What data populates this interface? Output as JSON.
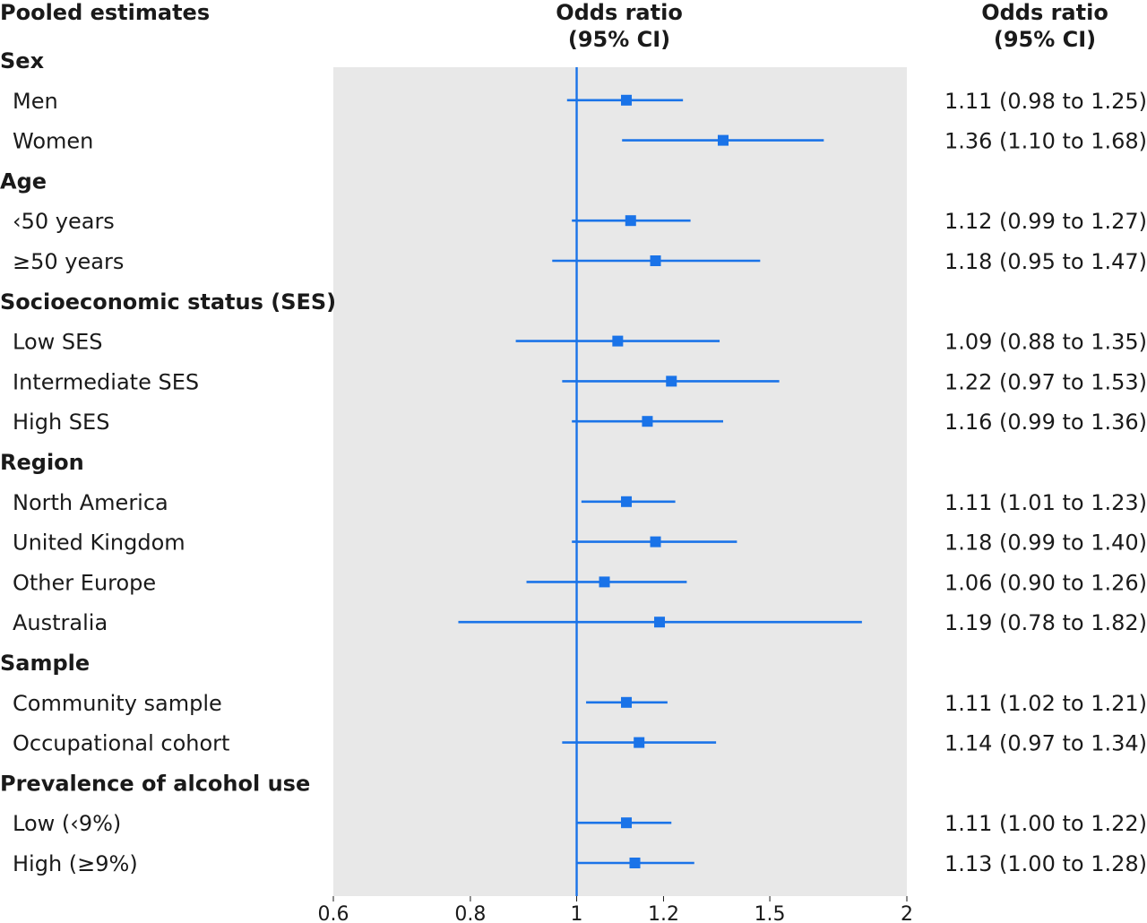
{
  "header": {
    "left": "Pooled estimates",
    "middle_line1": "Odds ratio",
    "middle_line2": "(95% CI)",
    "right_line1": "Odds ratio",
    "right_line2": "(95% CI)"
  },
  "colors": {
    "marker": "#1a73e8",
    "panel": "#e8e8e8",
    "text": "#1a1a1a"
  },
  "chart_data": {
    "type": "forest",
    "scale": "log",
    "reference_line": 1,
    "xlim": [
      0.6,
      2
    ],
    "x_ticks": [
      "0.6",
      "0.8",
      "1",
      "1.2",
      "1.5",
      "2"
    ],
    "x_tick_values": [
      0.6,
      0.8,
      1,
      1.2,
      1.5,
      2
    ],
    "rows": [
      {
        "kind": "group",
        "label": "Sex"
      },
      {
        "kind": "item",
        "label": "Men",
        "or": 1.11,
        "lo": 0.98,
        "hi": 1.25,
        "text": "1.11 (0.98 to 1.25)"
      },
      {
        "kind": "item",
        "label": "Women",
        "or": 1.36,
        "lo": 1.1,
        "hi": 1.68,
        "text": "1.36 (1.10 to 1.68)"
      },
      {
        "kind": "group",
        "label": "Age"
      },
      {
        "kind": "item",
        "label": "‹50 years",
        "or": 1.12,
        "lo": 0.99,
        "hi": 1.27,
        "text": "1.12 (0.99 to 1.27)"
      },
      {
        "kind": "item",
        "label": "≥50 years",
        "or": 1.18,
        "lo": 0.95,
        "hi": 1.47,
        "text": "1.18 (0.95 to 1.47)"
      },
      {
        "kind": "group",
        "label": "Socioeconomic status (SES)"
      },
      {
        "kind": "item",
        "label": "Low SES",
        "or": 1.09,
        "lo": 0.88,
        "hi": 1.35,
        "text": "1.09 (0.88 to 1.35)"
      },
      {
        "kind": "item",
        "label": "Intermediate SES",
        "or": 1.22,
        "lo": 0.97,
        "hi": 1.53,
        "text": "1.22 (0.97 to 1.53)"
      },
      {
        "kind": "item",
        "label": "High SES",
        "or": 1.16,
        "lo": 0.99,
        "hi": 1.36,
        "text": "1.16 (0.99 to 1.36)"
      },
      {
        "kind": "group",
        "label": "Region"
      },
      {
        "kind": "item",
        "label": "North America",
        "or": 1.11,
        "lo": 1.01,
        "hi": 1.23,
        "text": "1.11 (1.01 to 1.23)"
      },
      {
        "kind": "item",
        "label": "United Kingdom",
        "or": 1.18,
        "lo": 0.99,
        "hi": 1.4,
        "text": "1.18 (0.99 to 1.40)"
      },
      {
        "kind": "item",
        "label": "Other Europe",
        "or": 1.06,
        "lo": 0.9,
        "hi": 1.26,
        "text": "1.06 (0.90 to 1.26)"
      },
      {
        "kind": "item",
        "label": "Australia",
        "or": 1.19,
        "lo": 0.78,
        "hi": 1.82,
        "text": "1.19 (0.78 to 1.82)"
      },
      {
        "kind": "group",
        "label": "Sample"
      },
      {
        "kind": "item",
        "label": "Community sample",
        "or": 1.11,
        "lo": 1.02,
        "hi": 1.21,
        "text": "1.11 (1.02 to 1.21)"
      },
      {
        "kind": "item",
        "label": "Occupational cohort",
        "or": 1.14,
        "lo": 0.97,
        "hi": 1.34,
        "text": "1.14 (0.97 to 1.34)"
      },
      {
        "kind": "group",
        "label": "Prevalence of alcohol use"
      },
      {
        "kind": "item",
        "label": "Low (‹9%)",
        "or": 1.11,
        "lo": 1.0,
        "hi": 1.22,
        "text": "1.11 (1.00 to 1.22)"
      },
      {
        "kind": "item",
        "label": "High (≥9%)",
        "or": 1.13,
        "lo": 1.0,
        "hi": 1.28,
        "text": "1.13 (1.00 to 1.28)"
      }
    ]
  }
}
